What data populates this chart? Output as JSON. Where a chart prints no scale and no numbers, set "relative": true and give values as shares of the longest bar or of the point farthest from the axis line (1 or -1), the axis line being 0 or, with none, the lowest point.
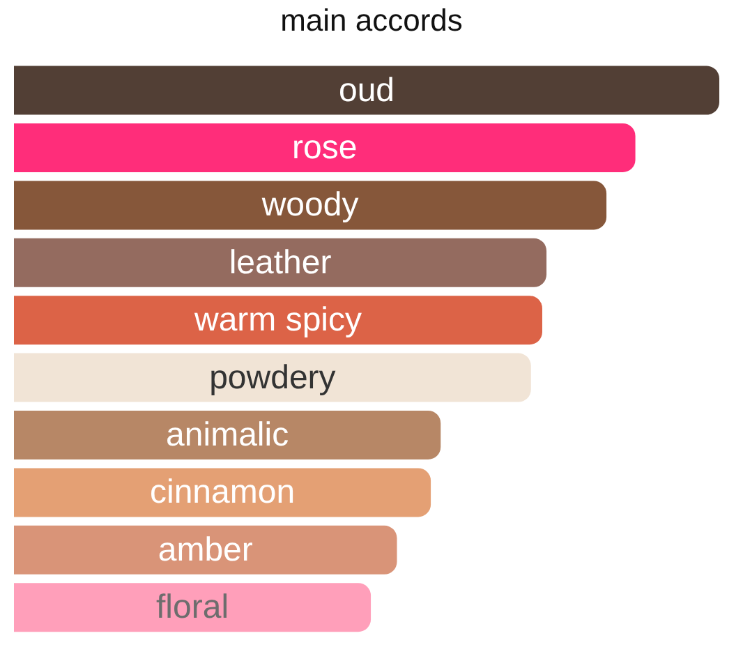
{
  "chart_data": {
    "type": "bar",
    "title": "main accords",
    "orientation": "horizontal",
    "relative": true,
    "categories": [
      "oud",
      "rose",
      "woody",
      "leather",
      "warm spicy",
      "powdery",
      "animalic",
      "cinnamon",
      "amber",
      "floral"
    ],
    "values": [
      1,
      0.881,
      0.84,
      0.755,
      0.749,
      0.733,
      0.605,
      0.591,
      0.543,
      0.506
    ],
    "colors": [
      "#523f35",
      "#ff2d7a",
      "#86573a",
      "#946b5f",
      "#dc6347",
      "#f1e4d6",
      "#b78766",
      "#e4a074",
      "#d99478",
      "#ff9fba"
    ],
    "grid": false,
    "legend": false
  }
}
